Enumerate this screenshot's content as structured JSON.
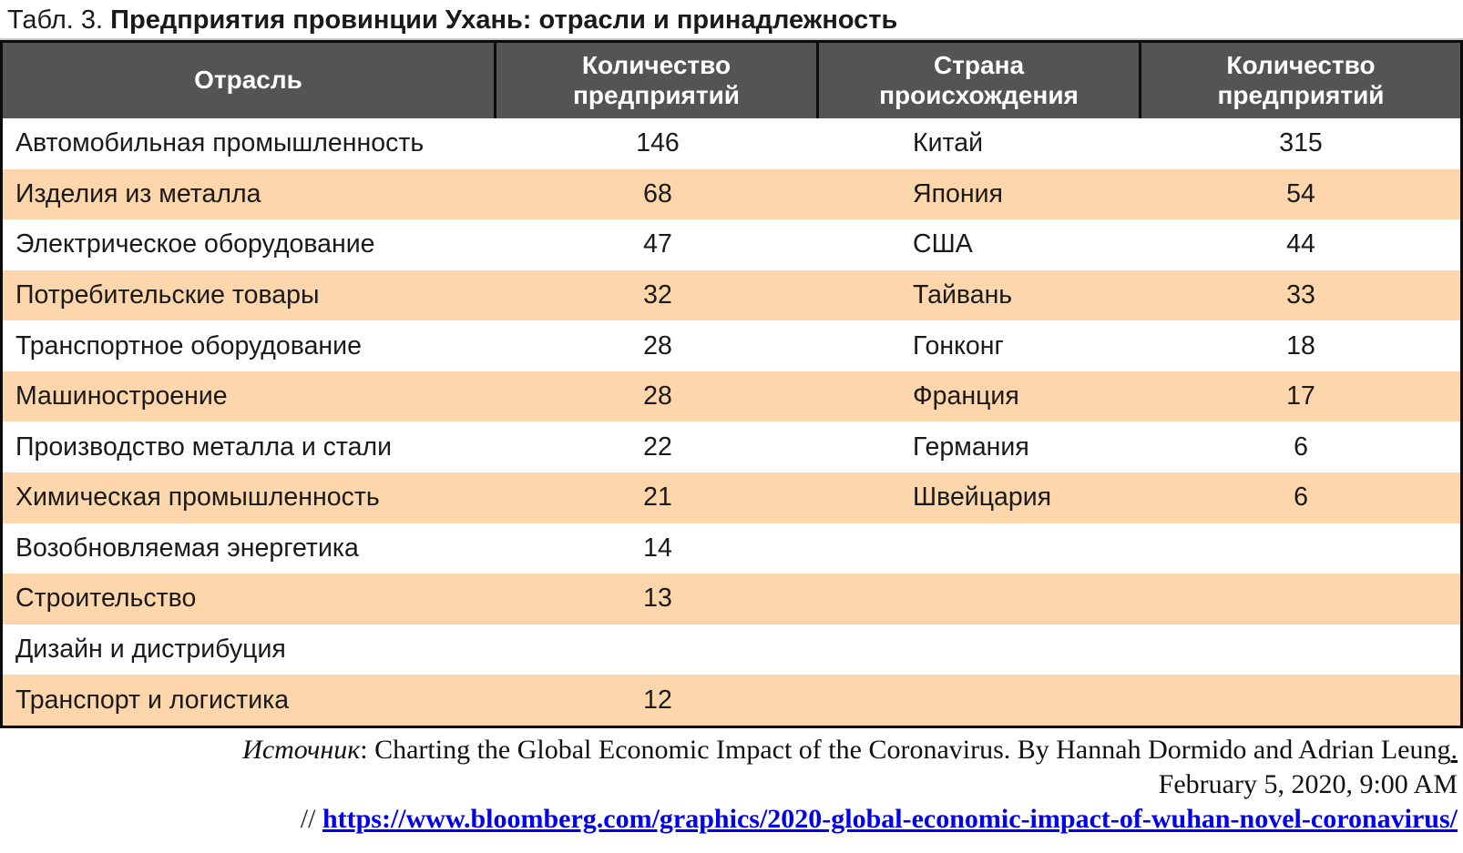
{
  "title": {
    "prefix": "Табл. 3. ",
    "main": "Предприятия провинции Ухань: отрасли и принадлежность"
  },
  "table": {
    "headers": [
      "Отрасль",
      "Количество предприятий",
      "Страна происхождения",
      "Количество предприятий"
    ],
    "rows": [
      {
        "industry": "Автомобильная промышленность",
        "industry_count": "146",
        "country": "Китай",
        "country_count": "315"
      },
      {
        "industry": "Изделия из металла",
        "industry_count": "68",
        "country": "Япония",
        "country_count": "54"
      },
      {
        "industry": "Электрическое оборудование",
        "industry_count": "47",
        "country": "США",
        "country_count": "44"
      },
      {
        "industry": "Потребительские товары",
        "industry_count": "32",
        "country": "Тайвань",
        "country_count": "33"
      },
      {
        "industry": "Транспортное оборудование",
        "industry_count": "28",
        "country": "Гонконг",
        "country_count": "18"
      },
      {
        "industry": "Машиностроение",
        "industry_count": "28",
        "country": "Франция",
        "country_count": "17"
      },
      {
        "industry": "Производство металла и стали",
        "industry_count": "22",
        "country": "Германия",
        "country_count": "6"
      },
      {
        "industry": "Химическая промышленность",
        "industry_count": "21",
        "country": "Швейцария",
        "country_count": "6"
      },
      {
        "industry": "Возобновляемая энергетика",
        "industry_count": "14",
        "country": "",
        "country_count": ""
      },
      {
        "industry": "Строительство",
        "industry_count": "13",
        "country": "",
        "country_count": ""
      },
      {
        "industry": "Дизайн и дистрибуция",
        "industry_count": "",
        "country": "",
        "country_count": ""
      },
      {
        "industry": "Транспорт и логистика",
        "industry_count": "12",
        "country": "",
        "country_count": ""
      }
    ]
  },
  "footer": {
    "source_label": "Источник",
    "source_text": ": Charting the Global Economic Impact of the Coronavirus. By Hannah Dormido and Adrian Leung",
    "source_tail": ".",
    "date_line": "February 5, 2020, 9:00 AM",
    "url_prefix": "// ",
    "url": "https://www.bloomberg.com/graphics/2020-global-economic-impact-of-wuhan-novel-coronavirus/"
  },
  "colors": {
    "header_bg": "#545454",
    "header_text": "#ffffff",
    "row_alt_bg": "#fdd6ab",
    "border": "#0b0b0b",
    "link_blue": "#0000ee"
  }
}
